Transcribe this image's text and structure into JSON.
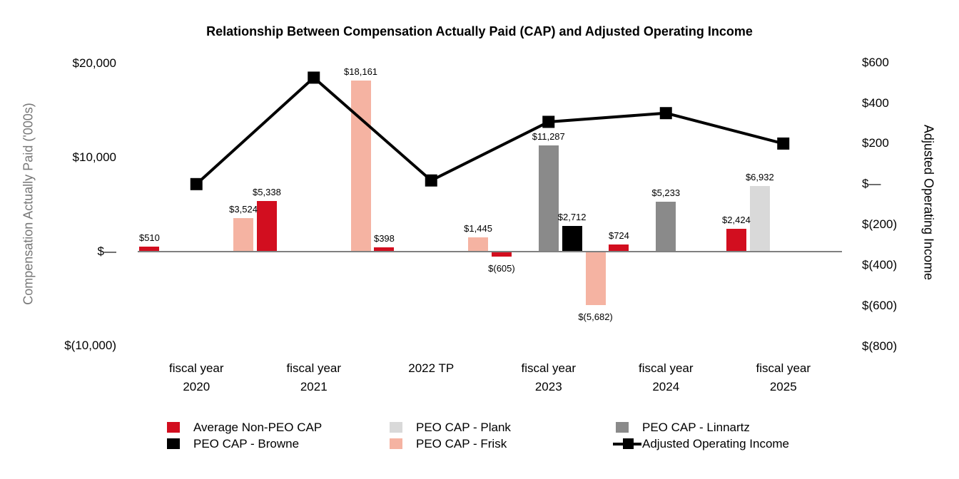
{
  "chart_data": {
    "type": "combo-bar-line",
    "title": "Relationship Between Compensation Actually Paid (CAP) and Adjusted Operating Income",
    "categories": [
      [
        "fiscal year",
        "2020"
      ],
      [
        "fiscal year",
        "2021"
      ],
      [
        "2022 TP"
      ],
      [
        "fiscal year",
        "2023"
      ],
      [
        "fiscal year",
        "2024"
      ],
      [
        "fiscal year",
        "2025"
      ]
    ],
    "left_axis": {
      "title": "Compensation Actually Paid ('000s)",
      "range": [
        -10000,
        20000
      ],
      "ticks": [
        {
          "label": "$20,000",
          "value": 20000
        },
        {
          "label": "$10,000",
          "value": 10000
        },
        {
          "label": "$—",
          "value": 0
        },
        {
          "label": "$(10,000)",
          "value": -10000
        }
      ]
    },
    "right_axis": {
      "title": "Adjusted Operating Income",
      "range": [
        -800,
        600
      ],
      "ticks": [
        {
          "label": "$600",
          "value": 600
        },
        {
          "label": "$400",
          "value": 400
        },
        {
          "label": "$200",
          "value": 200
        },
        {
          "label": "$—",
          "value": 0
        },
        {
          "label": "$(200)",
          "value": -200
        },
        {
          "label": "$(400)",
          "value": -400
        },
        {
          "label": "$(600)",
          "value": -600
        },
        {
          "label": "$(800)",
          "value": -800
        }
      ]
    },
    "bar_series": [
      {
        "name": "Average Non-PEO CAP",
        "color": "#D20E1F",
        "values": [
          510,
          5338,
          398,
          -605,
          724,
          2424
        ],
        "labels": [
          "$510",
          "$5,338",
          "$398",
          "$(605)",
          "$724",
          "$2,424"
        ]
      },
      {
        "name": "PEO CAP - Plank",
        "color": "#D9D9D9",
        "values": [
          null,
          null,
          null,
          null,
          null,
          6932
        ],
        "labels": [
          null,
          null,
          null,
          null,
          null,
          "$6,932"
        ]
      },
      {
        "name": "PEO CAP - Linnartz",
        "color": "#8A8A8A",
        "values": [
          null,
          null,
          null,
          11287,
          5233,
          null
        ],
        "labels": [
          null,
          null,
          null,
          "$11,287",
          "$5,233",
          null
        ]
      },
      {
        "name": "PEO CAP - Browne",
        "color": "#000000",
        "values": [
          null,
          null,
          null,
          2712,
          null,
          null
        ],
        "labels": [
          null,
          null,
          null,
          "$2,712",
          null,
          null
        ]
      },
      {
        "name": "PEO CAP - Frisk",
        "color": "#F5B3A2",
        "values": [
          3524,
          18161,
          1445,
          -5682,
          null,
          null
        ],
        "labels": [
          "$3,524",
          "$18,161",
          "$1,445",
          "$(5,682)",
          null,
          null
        ]
      }
    ],
    "line_series": {
      "name": "Adjusted Operating Income",
      "color": "#000000",
      "values": [
        0,
        525,
        18,
        307,
        350,
        200
      ]
    },
    "legend": {
      "items": [
        {
          "label": "Average Non-PEO CAP",
          "color": "#D20E1F",
          "symbol": "square",
          "row": 0,
          "col": 0
        },
        {
          "label": "PEO CAP - Browne",
          "color": "#000000",
          "symbol": "square",
          "row": 1,
          "col": 0
        },
        {
          "label": "PEO CAP - Plank",
          "color": "#D9D9D9",
          "symbol": "square",
          "row": 0,
          "col": 1
        },
        {
          "label": "PEO CAP - Frisk",
          "color": "#F5B3A2",
          "symbol": "square",
          "row": 1,
          "col": 1
        },
        {
          "label": "PEO CAP - Linnartz",
          "color": "#8A8A8A",
          "symbol": "square",
          "row": 0,
          "col": 2
        },
        {
          "label": "Adjusted Operating Income",
          "color": "#000000",
          "symbol": "line",
          "row": 1,
          "col": 2
        }
      ]
    }
  }
}
